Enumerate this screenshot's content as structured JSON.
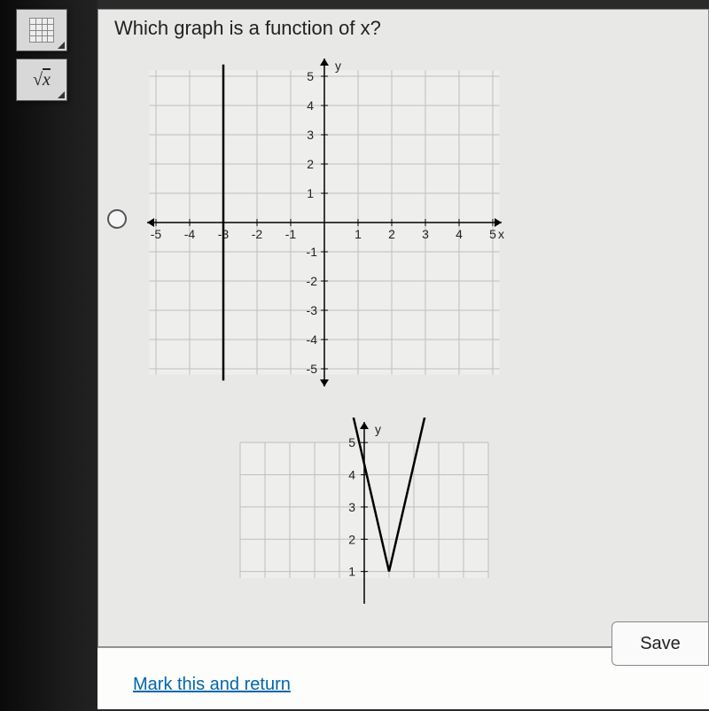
{
  "question": {
    "text": "Which graph is a function of x?"
  },
  "tools": {
    "calculator": {
      "name": "calculator-tool"
    },
    "sqrt": {
      "label_prefix": "√",
      "label_var": "x"
    }
  },
  "chart1": {
    "type": "line",
    "xlim": [
      -5,
      5
    ],
    "ylim": [
      -5,
      5
    ],
    "xtick_step": 1,
    "ytick_step": 1,
    "xticks_neg": [
      "-5",
      "-4",
      "-3",
      "-2",
      "-1"
    ],
    "xticks_pos": [
      "1",
      "2",
      "3",
      "4",
      "5"
    ],
    "yticks_neg": [
      "-1",
      "-2",
      "-3",
      "-4",
      "-5"
    ],
    "yticks_pos": [
      "1",
      "2",
      "3",
      "4",
      "5"
    ],
    "x_axis_label": "x",
    "y_axis_label": "y",
    "grid_color": "#bfbfbf",
    "axis_color": "#000000",
    "background_color": "#eeeeec",
    "line_color": "#000000",
    "line_width": 2.5,
    "vertical_line_x": -3,
    "label_fontsize": 14
  },
  "chart2": {
    "type": "line",
    "xlim": [
      -5,
      5
    ],
    "ylim": [
      1,
      5
    ],
    "yticks_pos": [
      "1",
      "2",
      "3",
      "4",
      "5"
    ],
    "y_axis_label": "y",
    "grid_color": "#bfbfbf",
    "axis_color": "#000000",
    "background_color": "#eeeeec",
    "line_color": "#000000",
    "line_width": 2.5,
    "v_shape": {
      "vertex_x": 1,
      "vertex_y": 1,
      "left_top_x": -0.5,
      "right_top_x": 2.5,
      "top_y": 6
    },
    "label_fontsize": 14
  },
  "footer": {
    "mark_link": "Mark this and return",
    "save_label": "Save"
  }
}
